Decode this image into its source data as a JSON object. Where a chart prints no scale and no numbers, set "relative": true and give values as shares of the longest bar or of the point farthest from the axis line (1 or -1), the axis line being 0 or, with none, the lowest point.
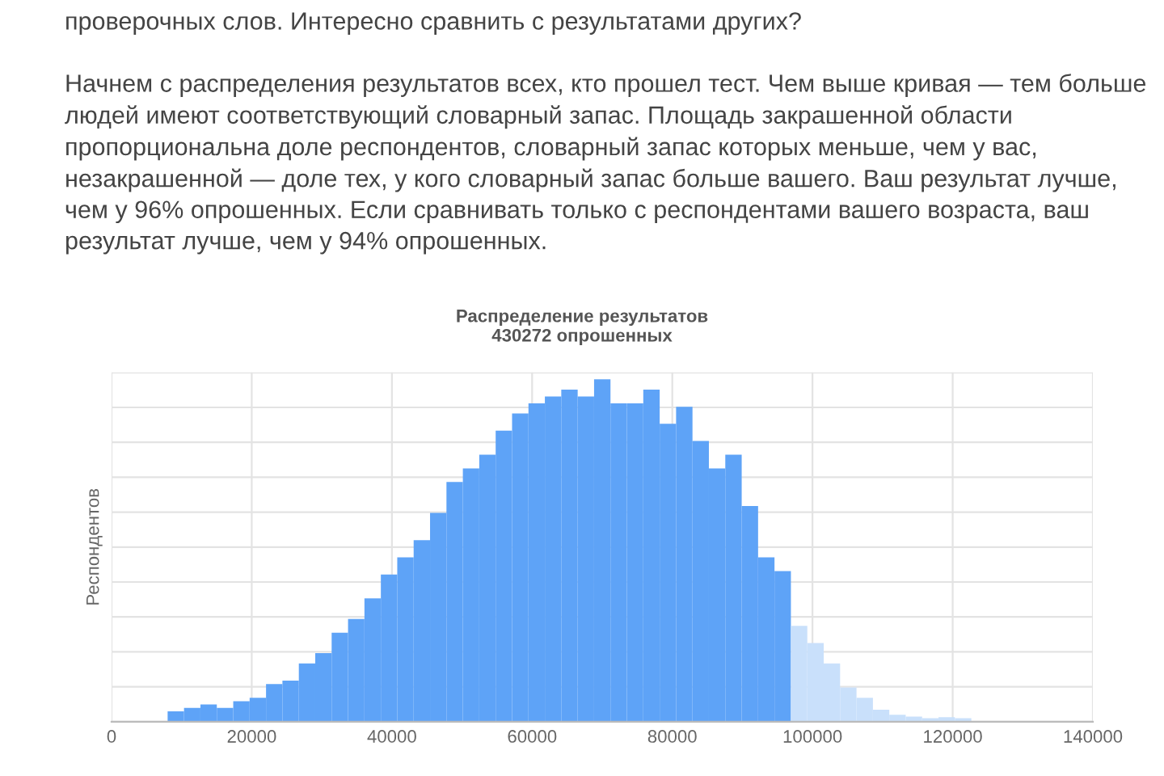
{
  "chart_data": {
    "type": "bar",
    "title": "Распределение результатов",
    "subtitle": "430272 опрошенных",
    "ylabel": "Респондентов",
    "annotations": [
      "проверочных слов. Интересно сравнить с результатами других?",
      "Начнем с распределения результатов всех, кто прошел тест. Чем выше кривая — тем больше людей имеют соответствующий словарный запас. Площадь закрашенной области пропорциональна доле респондентов, словарный запас которых меньше, чем у вас, незакрашенной — доле тех, у кого словарный запас больше вашего. Ваш результат лучше, чем у 96% опрошенных. Если сравнивать только с респондентами вашего возраста, ваш результат лучше, чем у 94% опрошенных."
    ],
    "relative": true,
    "x": [
      9170,
      11510,
      13850,
      16190,
      18530,
      20870,
      23210,
      25550,
      27890,
      30230,
      32570,
      34910,
      37250,
      39590,
      41930,
      44270,
      46610,
      48950,
      51290,
      53630,
      55970,
      58310,
      60650,
      62990,
      65330,
      67670,
      70010,
      72350,
      74690,
      77030,
      79370,
      81710,
      84050,
      86390,
      88730,
      91070,
      93410,
      95750,
      98090,
      100430,
      102770,
      105110,
      107450,
      109790,
      112130,
      114470,
      116810,
      119150,
      121490
    ],
    "values": [
      0.03,
      0.04,
      0.05,
      0.04,
      0.06,
      0.07,
      0.11,
      0.12,
      0.17,
      0.2,
      0.26,
      0.3,
      0.36,
      0.43,
      0.48,
      0.53,
      0.61,
      0.7,
      0.74,
      0.78,
      0.85,
      0.9,
      0.93,
      0.95,
      0.97,
      0.95,
      1,
      0.93,
      0.93,
      0.97,
      0.87,
      0.92,
      0.82,
      0.74,
      0.78,
      0.63,
      0.48,
      0.44,
      0.28,
      0.23,
      0.17,
      0.1,
      0.07,
      0.035,
      0.02,
      0.015,
      0.01,
      0.013,
      0.01
    ],
    "colors": [
      "#5ea3f7",
      "#5ea3f7",
      "#5ea3f7",
      "#5ea3f7",
      "#5ea3f7",
      "#5ea3f7",
      "#5ea3f7",
      "#5ea3f7",
      "#5ea3f7",
      "#5ea3f7",
      "#5ea3f7",
      "#5ea3f7",
      "#5ea3f7",
      "#5ea3f7",
      "#5ea3f7",
      "#5ea3f7",
      "#5ea3f7",
      "#5ea3f7",
      "#5ea3f7",
      "#5ea3f7",
      "#5ea3f7",
      "#5ea3f7",
      "#5ea3f7",
      "#5ea3f7",
      "#5ea3f7",
      "#5ea3f7",
      "#5ea3f7",
      "#5ea3f7",
      "#5ea3f7",
      "#5ea3f7",
      "#5ea3f7",
      "#5ea3f7",
      "#5ea3f7",
      "#5ea3f7",
      "#5ea3f7",
      "#5ea3f7",
      "#5ea3f7",
      "#5ea3f7",
      "#c9e0fb",
      "#c9e0fb",
      "#c9e0fb",
      "#c9e0fb",
      "#c9e0fb",
      "#c9e0fb",
      "#c9e0fb",
      "#c9e0fb",
      "#c9e0fb",
      "#c9e0fb",
      "#c9e0fb"
    ],
    "xlim": [
      0,
      140000
    ],
    "xticks": [
      0,
      20000,
      40000,
      60000,
      80000,
      100000,
      120000,
      140000
    ],
    "grid": true
  }
}
